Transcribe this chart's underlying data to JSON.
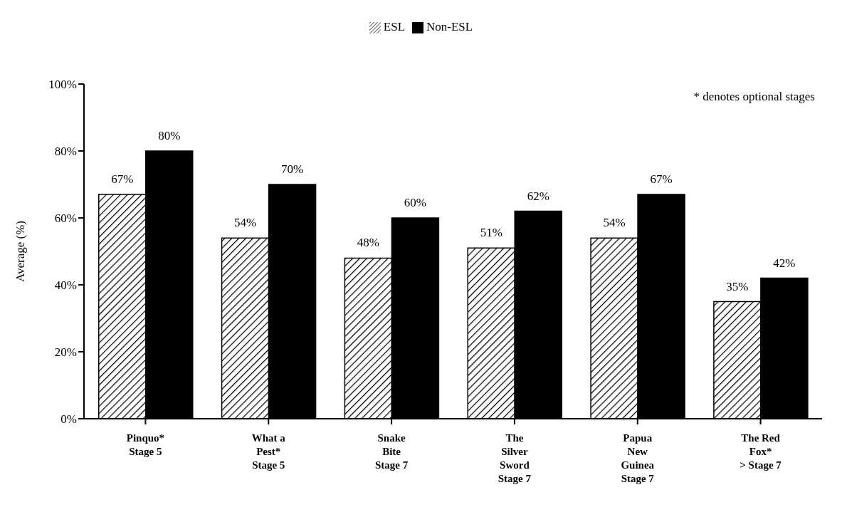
{
  "chart_data": {
    "type": "bar",
    "ylabel": "Average (%)",
    "annotations": [
      "* denotes optional stages"
    ],
    "categories": [
      "Pinquo*\n\nStage 5",
      "What a\nPest*\nStage 5",
      "Snake\nBite\nStage 7",
      "The\nSilver\nSword\nStage 7",
      "Papua\nNew\nGuinea\nStage 7",
      "The Red\nFox*\n> Stage 7"
    ],
    "series": [
      {
        "name": "ESL",
        "color": "#000000",
        "values": [
          67,
          54,
          48,
          51,
          54,
          35
        ],
        "value_labels": [
          "67%",
          "54%",
          "48%",
          "51%",
          "54%",
          "35%"
        ]
      },
      {
        "name": "Non-ESL",
        "color": "#000000",
        "values": [
          80,
          70,
          60,
          62,
          67,
          42
        ],
        "value_labels": [
          "80%",
          "70%",
          "60%",
          "62%",
          "67%",
          "42%"
        ]
      }
    ],
    "ylim": [
      0,
      100
    ],
    "yticks": [
      {
        "value": 0,
        "label": "0%"
      },
      {
        "value": 20,
        "label": "20%"
      },
      {
        "value": 40,
        "label": "40%"
      },
      {
        "value": 60,
        "label": "60%"
      },
      {
        "value": 80,
        "label": "80%"
      },
      {
        "value": 100,
        "label": "100%"
      }
    ],
    "grid": false,
    "legend": "top"
  }
}
